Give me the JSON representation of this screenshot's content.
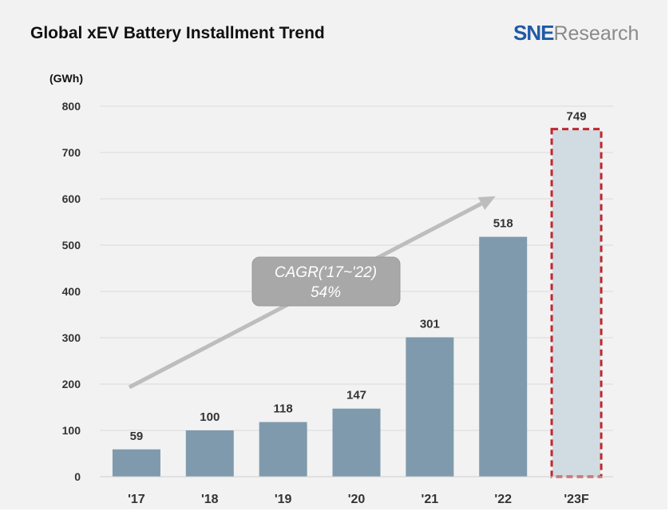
{
  "title": "Global xEV Battery Installment Trend",
  "logo": {
    "brand": "SNE",
    "suffix": "Research"
  },
  "chart_data": {
    "type": "bar",
    "title": "Global xEV Battery Installment Trend",
    "ylabel": "(GWh)",
    "xlabel": "",
    "categories": [
      "'17",
      "'18",
      "'19",
      "'20",
      "'21",
      "'22",
      "'23F"
    ],
    "values": [
      59,
      100,
      118,
      147,
      301,
      518,
      749
    ],
    "forecast": [
      false,
      false,
      false,
      false,
      false,
      false,
      true
    ],
    "ylim": [
      0,
      800
    ],
    "yticks": [
      0,
      100,
      200,
      300,
      400,
      500,
      600,
      700,
      800
    ],
    "grid": true,
    "annotation": {
      "line1": "CAGR('17~'22)",
      "line2": "54%"
    },
    "colors": {
      "bar": "#7f9aad",
      "forecast_fill": "#d1dbe2",
      "forecast_border": "#c0272d",
      "forecast_label": "#c0272d",
      "arrow": "#bdbdbd",
      "annotation_box": "#a8a8a8"
    }
  }
}
